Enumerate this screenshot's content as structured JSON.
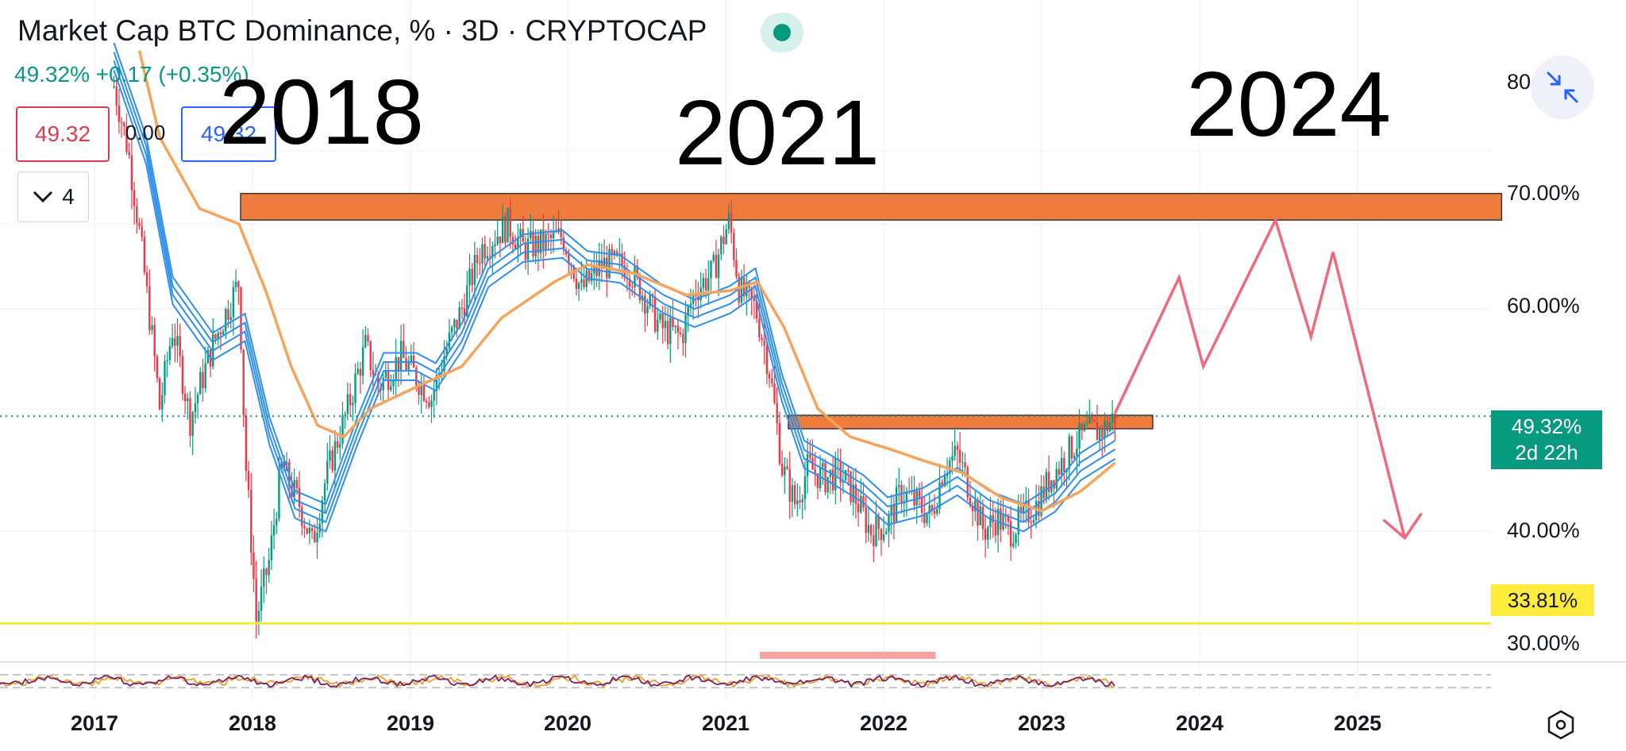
{
  "header": {
    "title": "Market Cap BTC Dominance, % · 3D · CRYPTOCAP",
    "quote_text": "49.32%  +0.17 (+0.35%)",
    "box_sell": "49.32",
    "box_spread": "0.00",
    "box_buy": "49.32",
    "indicator_toggle": "4",
    "live_status_icon": "live-dot-icon",
    "collapse_icon": "collapse-arrows-icon",
    "settings_icon": "settings-hexagon-icon"
  },
  "annotations": {
    "years": [
      "2018",
      "2021",
      "2024"
    ]
  },
  "price_axis": {
    "ticks": [
      "80",
      "70.00%",
      "60.00%",
      "40.00%",
      "30.00%"
    ],
    "last_price": "49.32%",
    "countdown": "2d 22h",
    "level_label": "33.81%"
  },
  "time_axis": {
    "labels": [
      "2017",
      "2018",
      "2019",
      "2020",
      "2021",
      "2022",
      "2023",
      "2024",
      "2025"
    ]
  },
  "colors": {
    "up": "#089981",
    "down": "#f23645",
    "ema_blue": "#2e8ff0",
    "ema_orange": "#f7a35c",
    "zone_orange": "#ef7c3d",
    "projection": "#ee6a7c",
    "yellow_line": "#f3eb3c"
  },
  "chart_data": {
    "type": "candlestick",
    "title": "Market Cap BTC Dominance, % · 3D · CRYPTOCAP",
    "ylabel": "%",
    "ylim": [
      28,
      82
    ],
    "y_scale": "log",
    "x_range": [
      "2016-09",
      "2025-12"
    ],
    "grid": true,
    "last_price": 49.32,
    "change": 0.17,
    "change_percent": 0.35,
    "price_path": [
      [
        "2017-02-15",
        90
      ],
      [
        "2017-03-20",
        80
      ],
      [
        "2017-05-01",
        62
      ],
      [
        "2017-06-01",
        50
      ],
      [
        "2017-07-01",
        58
      ],
      [
        "2017-08-10",
        49
      ],
      [
        "2017-10-01",
        56
      ],
      [
        "2017-12-01",
        63
      ],
      [
        "2017-12-15",
        46
      ],
      [
        "2018-01-10",
        34
      ],
      [
        "2018-02-10",
        38
      ],
      [
        "2018-03-10",
        45
      ],
      [
        "2018-04-20",
        42
      ],
      [
        "2018-05-20",
        39
      ],
      [
        "2018-06-20",
        44
      ],
      [
        "2018-08-10",
        50
      ],
      [
        "2018-09-20",
        56
      ],
      [
        "2018-10-20",
        52
      ],
      [
        "2018-12-10",
        55
      ],
      [
        "2019-01-15",
        53
      ],
      [
        "2019-02-20",
        51
      ],
      [
        "2019-03-20",
        55
      ],
      [
        "2019-05-01",
        60
      ],
      [
        "2019-06-15",
        67
      ],
      [
        "2019-08-15",
        70
      ],
      [
        "2019-09-20",
        67
      ],
      [
        "2019-11-01",
        67.5
      ],
      [
        "2019-12-20",
        68.5
      ],
      [
        "2020-02-01",
        62
      ],
      [
        "2020-03-20",
        65
      ],
      [
        "2020-05-15",
        65
      ],
      [
        "2020-07-01",
        61
      ],
      [
        "2020-08-01",
        58
      ],
      [
        "2020-09-20",
        57
      ],
      [
        "2020-10-20",
        62
      ],
      [
        "2020-12-01",
        64
      ],
      [
        "2021-01-08",
        70.5
      ],
      [
        "2021-02-01",
        62
      ],
      [
        "2021-03-10",
        60
      ],
      [
        "2021-04-10",
        54
      ],
      [
        "2021-05-10",
        45
      ],
      [
        "2021-06-10",
        42
      ],
      [
        "2021-07-10",
        45
      ],
      [
        "2021-08-15",
        44
      ],
      [
        "2021-09-20",
        44.5
      ],
      [
        "2021-10-20",
        43
      ],
      [
        "2021-12-01",
        40
      ],
      [
        "2022-01-10",
        40.5
      ],
      [
        "2022-02-10",
        43
      ],
      [
        "2022-03-20",
        42
      ],
      [
        "2022-04-20",
        41
      ],
      [
        "2022-05-20",
        45
      ],
      [
        "2022-06-20",
        46
      ],
      [
        "2022-07-20",
        43
      ],
      [
        "2022-08-20",
        40
      ],
      [
        "2022-09-20",
        41
      ],
      [
        "2022-10-20",
        40
      ],
      [
        "2022-11-20",
        41
      ],
      [
        "2022-12-20",
        42
      ],
      [
        "2023-01-20",
        44
      ],
      [
        "2023-02-20",
        45.5
      ],
      [
        "2023-03-20",
        47
      ],
      [
        "2023-04-20",
        48
      ],
      [
        "2023-05-20",
        48
      ],
      [
        "2023-06-20",
        49.32
      ]
    ],
    "ema_ribbon_blue": [
      [
        "2017-02-15",
        95
      ],
      [
        "2017-05-01",
        80
      ],
      [
        "2017-07-01",
        62
      ],
      [
        "2017-10-01",
        56
      ],
      [
        "2017-12-15",
        58
      ],
      [
        "2018-02-10",
        48
      ],
      [
        "2018-04-10",
        42
      ],
      [
        "2018-06-20",
        41
      ],
      [
        "2018-09-01",
        48
      ],
      [
        "2018-11-01",
        54
      ],
      [
        "2019-01-15",
        54
      ],
      [
        "2019-03-01",
        53
      ],
      [
        "2019-05-01",
        57
      ],
      [
        "2019-07-01",
        64
      ],
      [
        "2019-09-20",
        67
      ],
      [
        "2019-12-20",
        67.5
      ],
      [
        "2020-02-15",
        65
      ],
      [
        "2020-05-01",
        64.5
      ],
      [
        "2020-08-10",
        61
      ],
      [
        "2020-10-20",
        59.5
      ],
      [
        "2021-01-10",
        61
      ],
      [
        "2021-03-10",
        63
      ],
      [
        "2021-05-10",
        52
      ],
      [
        "2021-07-01",
        46
      ],
      [
        "2021-09-01",
        44.8
      ],
      [
        "2021-11-15",
        43.2
      ],
      [
        "2022-01-10",
        41.5
      ],
      [
        "2022-04-01",
        42.2
      ],
      [
        "2022-06-20",
        43.8
      ],
      [
        "2022-09-01",
        42
      ],
      [
        "2022-11-20",
        41
      ],
      [
        "2023-02-01",
        42.5
      ],
      [
        "2023-04-01",
        45
      ],
      [
        "2023-06-20",
        46.8
      ]
    ],
    "ema_orange": [
      [
        "2017-04-15",
        100
      ],
      [
        "2017-06-01",
        82
      ],
      [
        "2017-09-01",
        72
      ],
      [
        "2017-12-01",
        70
      ],
      [
        "2018-02-01",
        62
      ],
      [
        "2018-04-01",
        54
      ],
      [
        "2018-06-01",
        48.5
      ],
      [
        "2018-08-01",
        47.5
      ],
      [
        "2018-10-01",
        50
      ],
      [
        "2019-01-15",
        52
      ],
      [
        "2019-05-01",
        54
      ],
      [
        "2019-08-01",
        59
      ],
      [
        "2019-12-01",
        63
      ],
      [
        "2020-02-15",
        65
      ],
      [
        "2020-06-01",
        64
      ],
      [
        "2020-10-01",
        61.5
      ],
      [
        "2021-01-10",
        62
      ],
      [
        "2021-03-15",
        63
      ],
      [
        "2021-05-15",
        58
      ],
      [
        "2021-08-01",
        50
      ],
      [
        "2021-10-15",
        47.5
      ],
      [
        "2022-01-10",
        46.5
      ],
      [
        "2022-04-01",
        45.5
      ],
      [
        "2022-07-01",
        44.5
      ],
      [
        "2022-10-01",
        42.5
      ],
      [
        "2023-01-01",
        41.5
      ],
      [
        "2023-04-01",
        43
      ],
      [
        "2023-06-20",
        45.3
      ]
    ],
    "projection": [
      [
        "2023-06-20",
        49.6
      ],
      [
        "2023-11-15",
        63.5
      ],
      [
        "2024-01-10",
        54
      ],
      [
        "2024-06-25",
        70.5
      ],
      [
        "2024-09-15",
        57
      ],
      [
        "2024-11-05",
        66.5
      ],
      [
        "2025-04-20",
        39.5
      ]
    ],
    "resistance_zones": [
      {
        "x_start": "2017-12-05",
        "x_end": "2025-11-30",
        "y_low": 70.5,
        "y_high": 74
      },
      {
        "x_start": "2021-05-25",
        "x_end": "2023-09-15",
        "y_low": 48.2,
        "y_high": 49.4
      }
    ],
    "horizontal_level": 33.81,
    "annotations": [
      "2018",
      "2021",
      "2024"
    ],
    "x_tick_labels": [
      "2017",
      "2018",
      "2019",
      "2020",
      "2021",
      "2022",
      "2023",
      "2024",
      "2025"
    ],
    "y_tick_labels": [
      "80",
      "70.00%",
      "60.00%",
      "40.00%",
      "30.00%"
    ]
  }
}
